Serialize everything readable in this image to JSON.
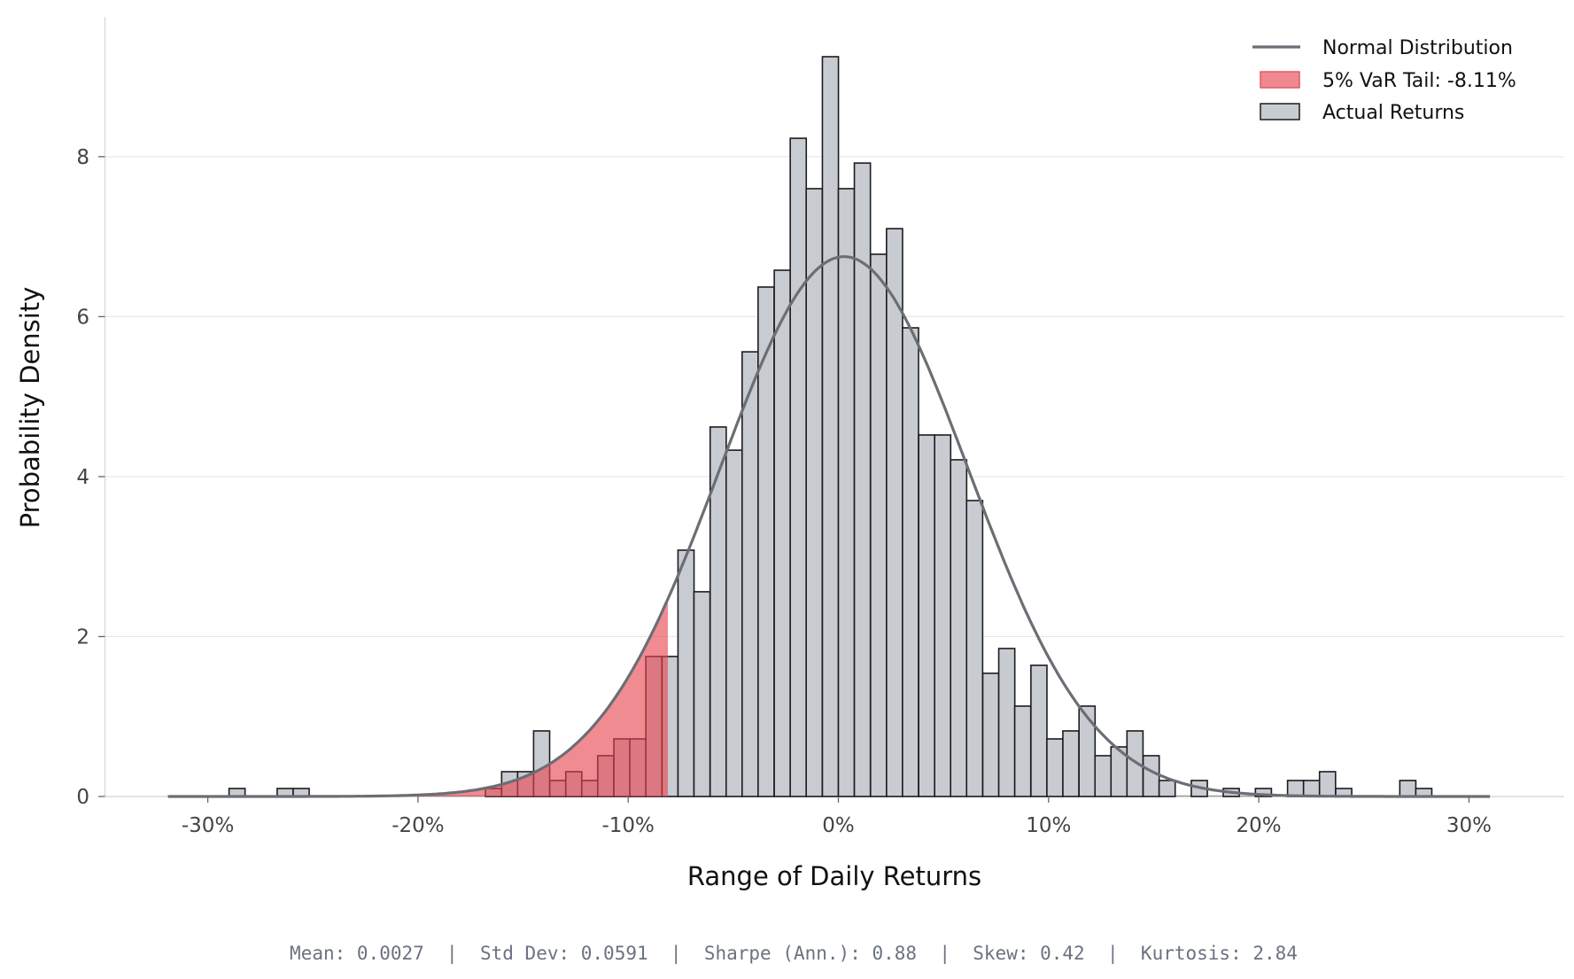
{
  "chart_data": {
    "type": "bar",
    "subtype": "histogram",
    "xlabel": "Range of Daily Returns",
    "ylabel": "Probability Density",
    "xlim": [
      -35,
      34
    ],
    "ylim": [
      0,
      9.7
    ],
    "x_ticks": [
      -30,
      -20,
      -10,
      0,
      10,
      20,
      30
    ],
    "x_tick_labels": [
      "-30%",
      "-20%",
      "-10%",
      "0%",
      "10%",
      "20%",
      "30%"
    ],
    "y_ticks": [
      0,
      2,
      4,
      6,
      8
    ],
    "y_tick_labels": [
      "0",
      "2",
      "4",
      "6",
      "8"
    ],
    "grid": "horizontal",
    "legend_placement": "top-right",
    "bin_width_pct": 0.763,
    "bins": [
      {
        "left": -28.99,
        "density": 0.1
      },
      {
        "left": -26.7,
        "density": 0.1
      },
      {
        "left": -25.94,
        "density": 0.1
      },
      {
        "left": -16.79,
        "density": 0.1
      },
      {
        "left": -16.02,
        "density": 0.31
      },
      {
        "left": -15.26,
        "density": 0.31
      },
      {
        "left": -14.5,
        "density": 0.82
      },
      {
        "left": -13.73,
        "density": 0.2
      },
      {
        "left": -12.97,
        "density": 0.31
      },
      {
        "left": -12.21,
        "density": 0.2
      },
      {
        "left": -11.45,
        "density": 0.51
      },
      {
        "left": -10.68,
        "density": 0.72
      },
      {
        "left": -9.92,
        "density": 0.72
      },
      {
        "left": -9.16,
        "density": 1.75
      },
      {
        "left": -8.39,
        "density": 1.75
      },
      {
        "left": -7.63,
        "density": 3.08
      },
      {
        "left": -6.87,
        "density": 2.56
      },
      {
        "left": -6.1,
        "density": 4.62
      },
      {
        "left": -5.34,
        "density": 4.33
      },
      {
        "left": -4.58,
        "density": 5.56
      },
      {
        "left": -3.82,
        "density": 6.37
      },
      {
        "left": -3.05,
        "density": 6.58
      },
      {
        "left": -2.29,
        "density": 8.23
      },
      {
        "left": -1.53,
        "density": 7.6
      },
      {
        "left": -0.76,
        "density": 9.25
      },
      {
        "left": 0.0,
        "density": 7.6
      },
      {
        "left": 0.76,
        "density": 7.92
      },
      {
        "left": 1.53,
        "density": 6.78
      },
      {
        "left": 2.29,
        "density": 7.1
      },
      {
        "left": 3.05,
        "density": 5.86
      },
      {
        "left": 3.82,
        "density": 4.52
      },
      {
        "left": 4.58,
        "density": 4.52
      },
      {
        "left": 5.34,
        "density": 4.21
      },
      {
        "left": 6.1,
        "density": 3.7
      },
      {
        "left": 6.87,
        "density": 1.54
      },
      {
        "left": 7.63,
        "density": 1.85
      },
      {
        "left": 8.39,
        "density": 1.13
      },
      {
        "left": 9.16,
        "density": 1.64
      },
      {
        "left": 9.92,
        "density": 0.72
      },
      {
        "left": 10.68,
        "density": 0.82
      },
      {
        "left": 11.45,
        "density": 1.13
      },
      {
        "left": 12.21,
        "density": 0.51
      },
      {
        "left": 12.97,
        "density": 0.62
      },
      {
        "left": 13.73,
        "density": 0.82
      },
      {
        "left": 14.5,
        "density": 0.51
      },
      {
        "left": 15.26,
        "density": 0.2
      },
      {
        "left": 16.79,
        "density": 0.2
      },
      {
        "left": 18.31,
        "density": 0.1
      },
      {
        "left": 19.84,
        "density": 0.1
      },
      {
        "left": 21.37,
        "density": 0.2
      },
      {
        "left": 22.13,
        "density": 0.2
      },
      {
        "left": 22.89,
        "density": 0.31
      },
      {
        "left": 23.66,
        "density": 0.1
      },
      {
        "left": 26.71,
        "density": 0.2
      },
      {
        "left": 27.47,
        "density": 0.1
      }
    ],
    "normal_curve": {
      "mean_pct": 0.27,
      "std_pct": 5.91,
      "x_range": [
        -31.9,
        31.0
      ]
    },
    "var_threshold_pct": -8.11,
    "legend": [
      {
        "label": "Normal Distribution",
        "kind": "line"
      },
      {
        "label": "5% VaR Tail: -8.11%",
        "kind": "patch-red"
      },
      {
        "label": "Actual Returns",
        "kind": "patch-grey"
      }
    ],
    "stats_line": "Mean: 0.0027  |  Std Dev: 0.0591  |  Sharpe (Ann.): 0.88  |  Skew: 0.42  |  Kurtosis: 2.84"
  },
  "colors": {
    "bar_fill": "#c8ccd2",
    "bar_edge": "#1c1c1c",
    "var_fill": "#e8434f",
    "curve": "#6b6e74",
    "grid": "#e8e8e8"
  }
}
